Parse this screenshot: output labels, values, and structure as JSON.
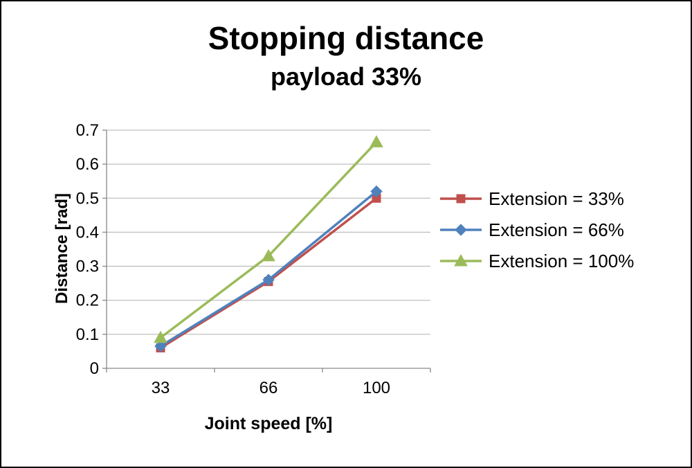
{
  "chart_data": {
    "type": "line",
    "title": "Stopping distance",
    "subtitle": "payload 33%",
    "xlabel": "Joint speed [%]",
    "ylabel": "Distance [rad]",
    "categories": [
      "33",
      "66",
      "100"
    ],
    "series": [
      {
        "name": "Extension = 33%",
        "marker": "square",
        "color": "#c0504d",
        "values": [
          0.06,
          0.255,
          0.5
        ]
      },
      {
        "name": "Extension = 66%",
        "marker": "diamond",
        "color": "#4f81bd",
        "values": [
          0.065,
          0.26,
          0.52
        ]
      },
      {
        "name": "Extension = 100%",
        "marker": "triangle",
        "color": "#9bbb59",
        "values": [
          0.09,
          0.33,
          0.665
        ]
      }
    ],
    "ylim": [
      0,
      0.7
    ],
    "ytick_step": 0.1,
    "grid": true,
    "legend_position": "right",
    "grid_color": "#bfbfbf",
    "axis_color": "#898989",
    "text_color": "#000000"
  }
}
